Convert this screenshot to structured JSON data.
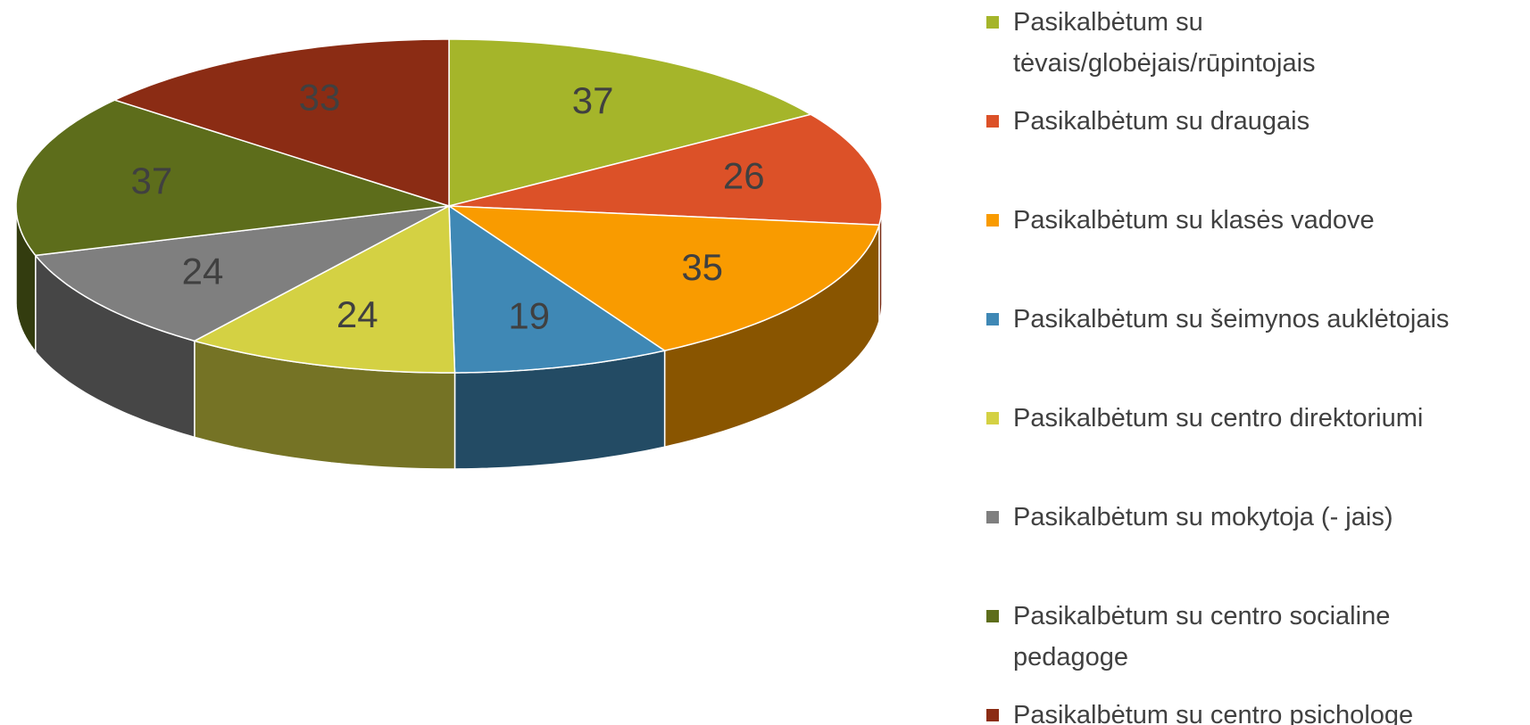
{
  "chart_data": {
    "type": "pie3d",
    "categories": [
      "Pasikalbėtum su tėvais/globėjais/rūpintojais",
      "Pasikalbėtum su draugais",
      "Pasikalbėtum su klasės vadove",
      "Pasikalbėtum su šeimynos auklėtojais",
      "Pasikalbėtum su centro direktoriumi",
      "Pasikalbėtum su mokytoja (- jais)",
      "Pasikalbėtum su centro socialine pedagoge",
      "Pasikalbėtum su centro psichologe"
    ],
    "values": [
      37,
      26,
      35,
      19,
      24,
      24,
      37,
      33
    ],
    "colors": [
      "#a5b52a",
      "#dc5128",
      "#f99b00",
      "#3f88b5",
      "#d4d143",
      "#7f7f7f",
      "#5d6d1b",
      "#8b2c14"
    ],
    "legend": "right"
  }
}
